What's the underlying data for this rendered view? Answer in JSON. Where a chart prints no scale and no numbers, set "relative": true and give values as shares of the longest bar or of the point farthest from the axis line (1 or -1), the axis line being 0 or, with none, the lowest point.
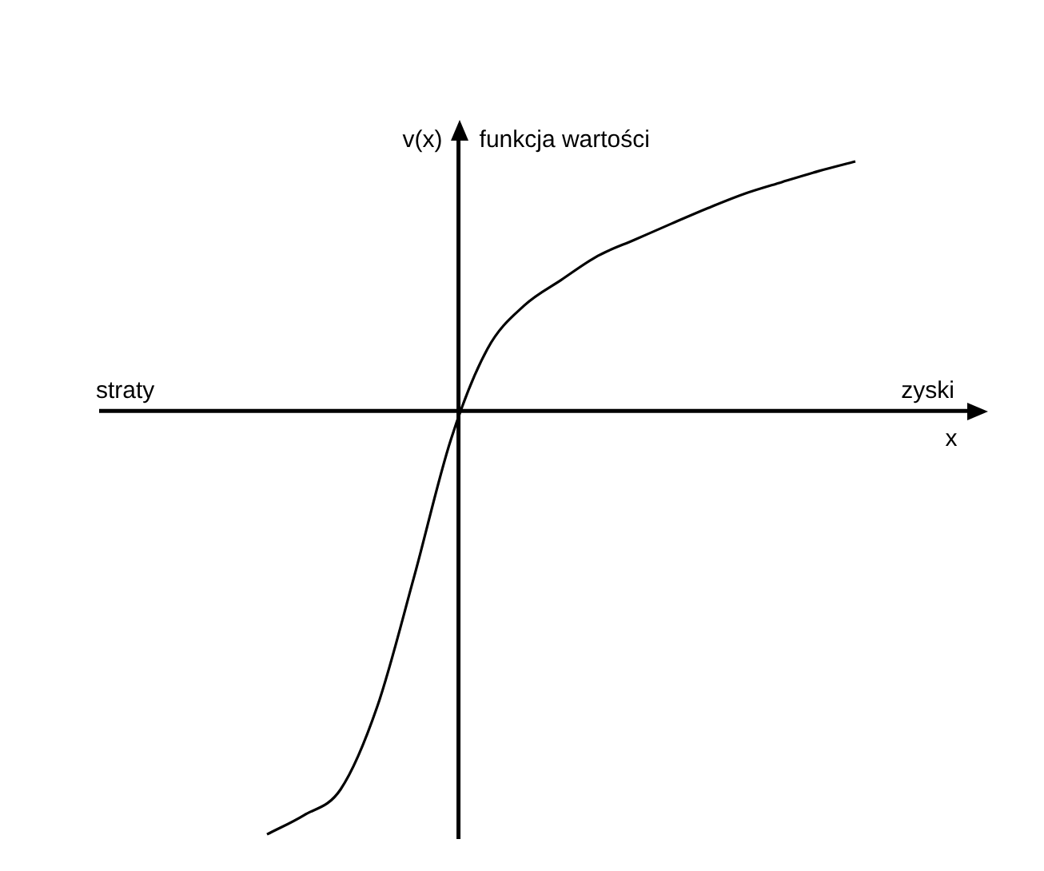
{
  "chart_data": {
    "type": "line",
    "relative": true,
    "xlabel": "x",
    "ylabel": "v(x)",
    "annotations": [
      "funkcja wartości",
      "straty",
      "zyski"
    ],
    "marker": "none",
    "categories": [
      null,
      null,
      null,
      null,
      null,
      null,
      null,
      null,
      null,
      null,
      null,
      null,
      null,
      null,
      null,
      null,
      null
    ],
    "series": [
      {
        "color": "#000000",
        "values": [
          -1,
          -0.955,
          -0.894,
          -0.698,
          -0.392,
          -0.068,
          0.147,
          0.249,
          0.309,
          0.366,
          0.404,
          0.442,
          0.479,
          0.513,
          0.54,
          0.566,
          0.589
        ]
      }
    ]
  }
}
